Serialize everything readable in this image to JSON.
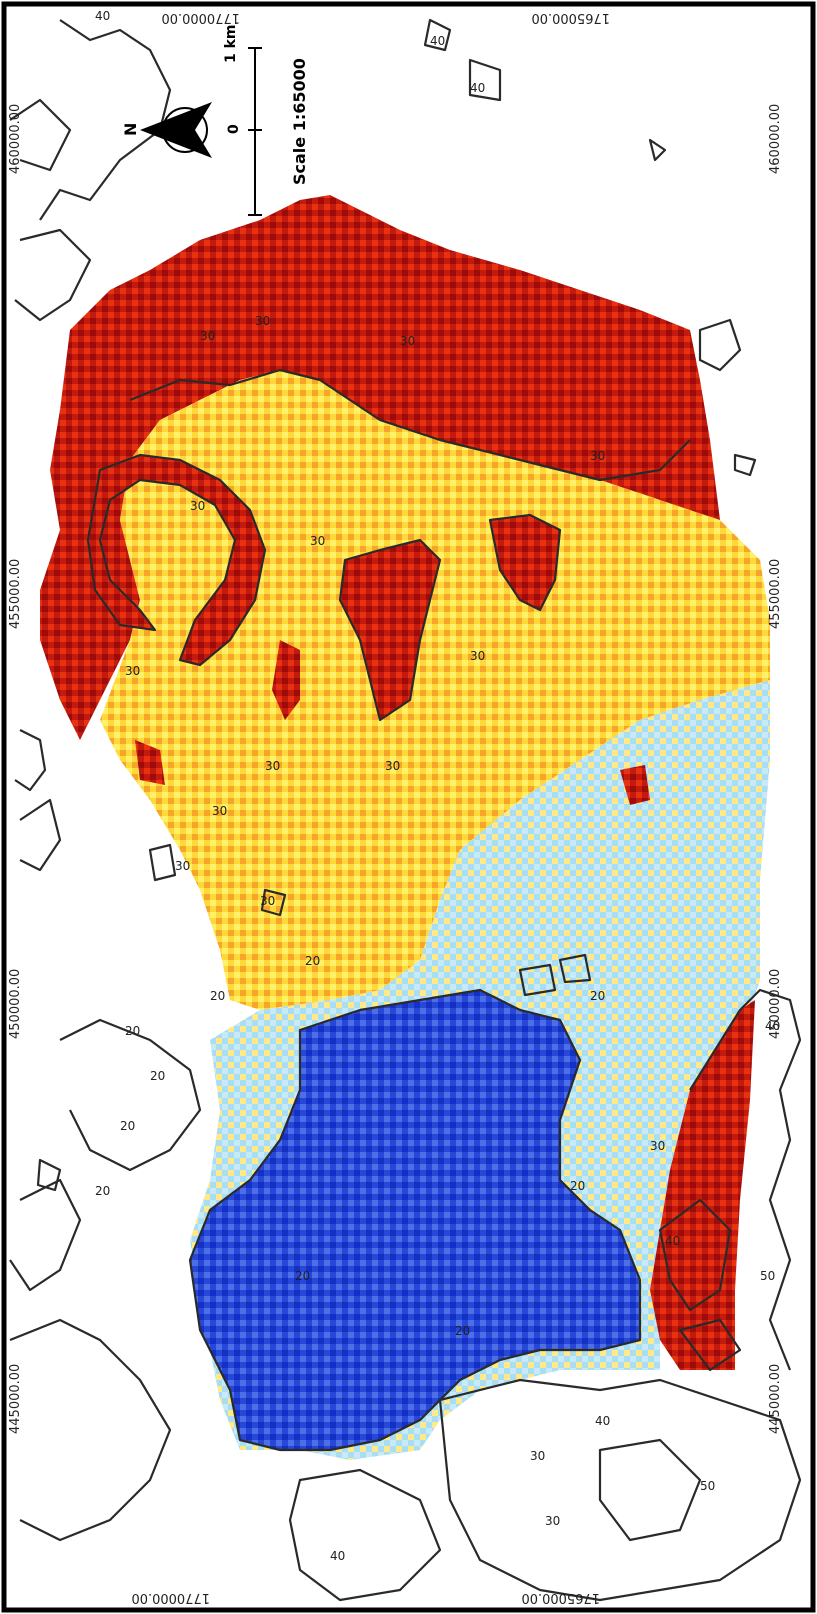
{
  "map": {
    "colors": {
      "very_low": "#1f3fd6",
      "low": "#a7dcf3",
      "mid": "#ffe14a",
      "high": "#f28c1e",
      "very_high": "#b00f0a",
      "contour": "#2a2a2a",
      "frame": "#000000"
    },
    "coordinates": {
      "top_easting": "1770000.00",
      "top_easting_right": "1765000.00",
      "bottom_easting_left": "1770000.00",
      "bottom_easting_right": "1765000.00",
      "northing_1": "460000.00",
      "northing_2": "455000.00",
      "northing_3": "450000.00",
      "northing_4": "445000.00"
    },
    "scale": {
      "text": "Scale 1:65000",
      "unit_label": "1 km",
      "zero_label": "0"
    },
    "north_arrow_label": "N",
    "contour_labels": [
      "40",
      "40",
      "40",
      "30",
      "30",
      "30",
      "30",
      "30",
      "30",
      "30",
      "30",
      "30",
      "30",
      "30",
      "30",
      "30",
      "30",
      "20",
      "20",
      "20",
      "20",
      "20",
      "20",
      "20",
      "20",
      "20",
      "20",
      "40",
      "40",
      "40",
      "50",
      "50",
      "30",
      "30",
      "40"
    ]
  }
}
